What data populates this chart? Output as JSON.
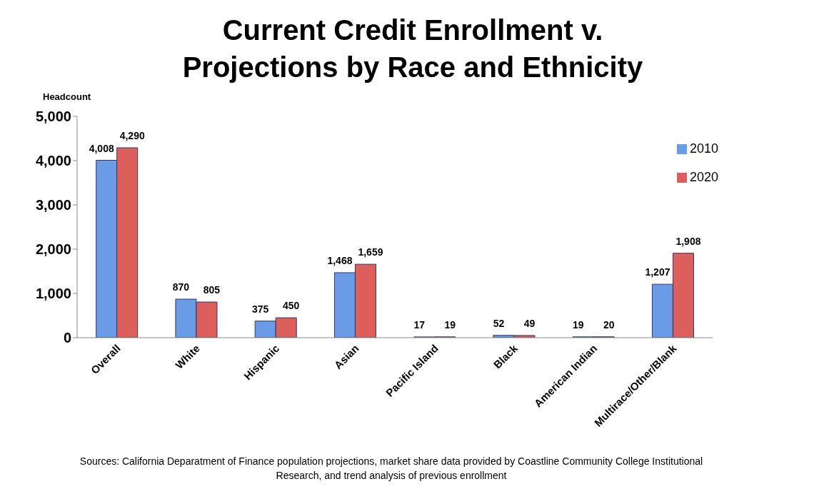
{
  "chart_data": {
    "type": "bar",
    "title": "Current Credit Enrollment v. Projections by Race and Ethnicity",
    "ylabel": "Headcount",
    "categories": [
      "Overall",
      "White",
      "Hispanic",
      "Asian",
      "Pacific Island",
      "Black",
      "American Indian",
      "Multirace/Other/Blank"
    ],
    "series": [
      {
        "name": "2010",
        "color": "#6a9be6",
        "values": [
          4008,
          870,
          375,
          1468,
          17,
          52,
          19,
          1207
        ],
        "value_labels": [
          "4,008",
          "870",
          "375",
          "1,468",
          "17",
          "52",
          "19",
          "1,207"
        ]
      },
      {
        "name": "2020",
        "color": "#dd5f5b",
        "values": [
          4290,
          805,
          450,
          1659,
          19,
          49,
          20,
          1908
        ],
        "value_labels": [
          "4,290",
          "805",
          "450",
          "1,659",
          "19",
          "49",
          "20",
          "1,908"
        ]
      }
    ],
    "ylim": [
      0,
      5000
    ],
    "yticks": [
      0,
      {
        "value": 1000,
        "label": "1,000"
      },
      {
        "value": 2000,
        "label": "2,000"
      },
      {
        "value": 3000,
        "label": "3,000"
      },
      {
        "value": 4000,
        "label": "4,000"
      },
      {
        "value": 5000,
        "label": "5,000"
      }
    ],
    "grid": false,
    "legend": "top right",
    "annotations": [
      "Sources:  California Deparatment of Finance population projections, market share data provided by Coastline Community College Institutional Research, and trend analysis of previous enrollment"
    ]
  }
}
